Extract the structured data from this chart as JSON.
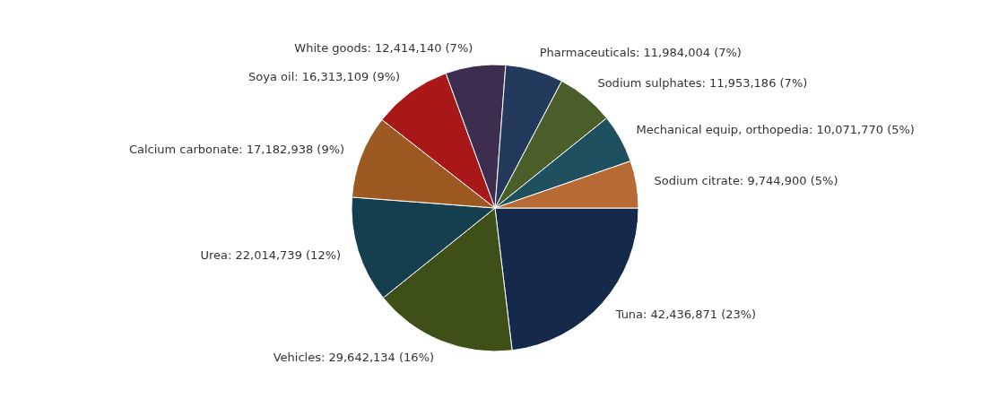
{
  "chart_data": {
    "type": "pie",
    "categories": [
      "Tuna",
      "Vehicles",
      "Urea",
      "Calcium carbonate",
      "Soya oil",
      "White goods",
      "Pharmaceuticals",
      "Sodium sulphates",
      "Mechanical equip, orthopedia",
      "Sodium citrate"
    ],
    "values": [
      42436871,
      29642134,
      22014739,
      17182938,
      16313109,
      12414140,
      11984004,
      11953186,
      10071770,
      9744900
    ],
    "value_labels": [
      "42,436,871 (23%)",
      "29,642,134 (16%)",
      "22,014,739 (12%)",
      "17,182,938 (9%)",
      "16,313,109 (9%)",
      "12,414,140 (7%)",
      "11,984,004 (7%)",
      "11,953,186 (7%)",
      "10,071,770 (5%)",
      "9,744,900 (5%)"
    ],
    "colors": [
      "#152a4a",
      "#3f4f18",
      "#153f4f",
      "#9c5a22",
      "#a81818",
      "#3d2d4f",
      "#233a5c",
      "#4a5e2a",
      "#1e5060",
      "#b86a35"
    ]
  }
}
